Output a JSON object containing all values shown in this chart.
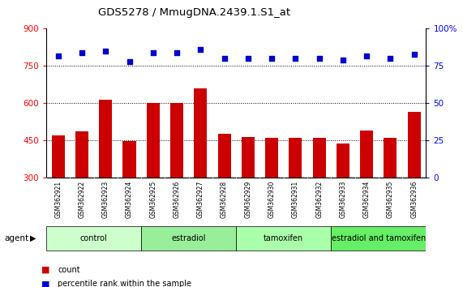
{
  "title": "GDS5278 / MmugDNA.2439.1.S1_at",
  "samples": [
    "GSM362921",
    "GSM362922",
    "GSM362923",
    "GSM362924",
    "GSM362925",
    "GSM362926",
    "GSM362927",
    "GSM362928",
    "GSM362929",
    "GSM362930",
    "GSM362931",
    "GSM362932",
    "GSM362933",
    "GSM362934",
    "GSM362935",
    "GSM362936"
  ],
  "counts": [
    470,
    488,
    615,
    447,
    600,
    603,
    660,
    478,
    465,
    460,
    462,
    460,
    440,
    492,
    462,
    565
  ],
  "percentiles": [
    82,
    84,
    85,
    78,
    84,
    84,
    86,
    80,
    80,
    80,
    80,
    80,
    79,
    82,
    80,
    83
  ],
  "bar_color": "#cc0000",
  "dot_color": "#0000cc",
  "ylim_left": [
    300,
    900
  ],
  "ylim_right": [
    0,
    100
  ],
  "yticks_left": [
    300,
    450,
    600,
    750,
    900
  ],
  "yticks_right": [
    0,
    25,
    50,
    75,
    100
  ],
  "groups": [
    {
      "label": "control",
      "start": 0,
      "end": 4
    },
    {
      "label": "estradiol",
      "start": 4,
      "end": 8
    },
    {
      "label": "tamoxifen",
      "start": 8,
      "end": 12
    },
    {
      "label": "estradiol and tamoxifen",
      "start": 12,
      "end": 16
    }
  ],
  "group_colors": [
    "#ccffcc",
    "#99ee99",
    "#aaffaa",
    "#66ee66"
  ],
  "agent_label": "agent",
  "legend_count_label": "count",
  "legend_percentile_label": "percentile rank within the sample",
  "xtick_bg_color": "#cccccc",
  "gridline_yticks": [
    450,
    600,
    750
  ]
}
